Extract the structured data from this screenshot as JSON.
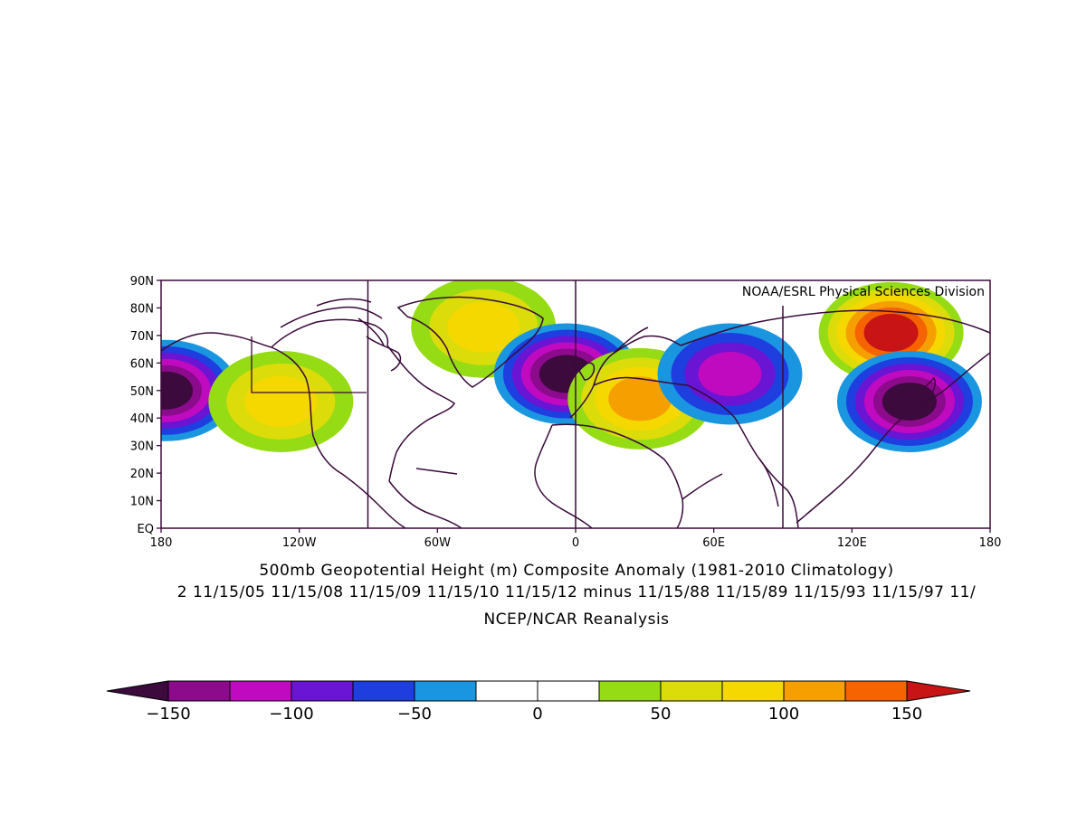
{
  "map": {
    "projection": "cylindrical equidistant",
    "lon_range": [
      -180,
      180
    ],
    "lat_range": [
      0,
      90
    ],
    "lat_ticks": [
      "90N",
      "80N",
      "70N",
      "60N",
      "50N",
      "40N",
      "30N",
      "20N",
      "10N",
      "EQ"
    ],
    "lon_ticks": [
      "180",
      "120W",
      "60W",
      "0",
      "60E",
      "120E",
      "180"
    ],
    "credit": "NOAA/ESRL Physical Sciences Division",
    "frame_color": "#3a0a3a"
  },
  "captions": {
    "line1": "500mb Geopotential Height (m) Composite Anomaly (1981-2010 Climatology)",
    "line2": "2 11/15/05 11/15/08 11/15/09 11/15/10 11/15/12 minus 11/15/88 11/15/89 11/15/93 11/15/97 11/",
    "line3": "NCEP/NCAR Reanalysis"
  },
  "colorbar": {
    "labels": [
      "-150",
      "-100",
      "-50",
      "0",
      "50",
      "100",
      "150"
    ],
    "colors": [
      "#3c0a3c",
      "#8c0a8c",
      "#c00ac0",
      "#6a14d4",
      "#1e3ee0",
      "#1a96e0",
      "#ffffff",
      "#ffffff",
      "#96dc14",
      "#dcdc0a",
      "#f5d800",
      "#f5a000",
      "#f56400",
      "#c81414"
    ]
  },
  "anomalies": [
    {
      "name": "N Pacific low",
      "lon": -178,
      "lat": 50,
      "value": -150
    },
    {
      "name": "Alaska / NE Pacific high",
      "lon": -128,
      "lat": 46,
      "value": 90
    },
    {
      "name": "Greenland high",
      "lon": -40,
      "lat": 73,
      "value": 75
    },
    {
      "name": "NE Atlantic low",
      "lon": -4,
      "lat": 56,
      "value": -160
    },
    {
      "name": "Europe high",
      "lon": 28,
      "lat": 47,
      "value": 120
    },
    {
      "name": "W Siberia low",
      "lon": 67,
      "lat": 56,
      "value": -120
    },
    {
      "name": "E Siberia high",
      "lon": 137,
      "lat": 71,
      "value": 150
    },
    {
      "name": "NW Pacific low",
      "lon": 145,
      "lat": 46,
      "value": -150
    }
  ]
}
